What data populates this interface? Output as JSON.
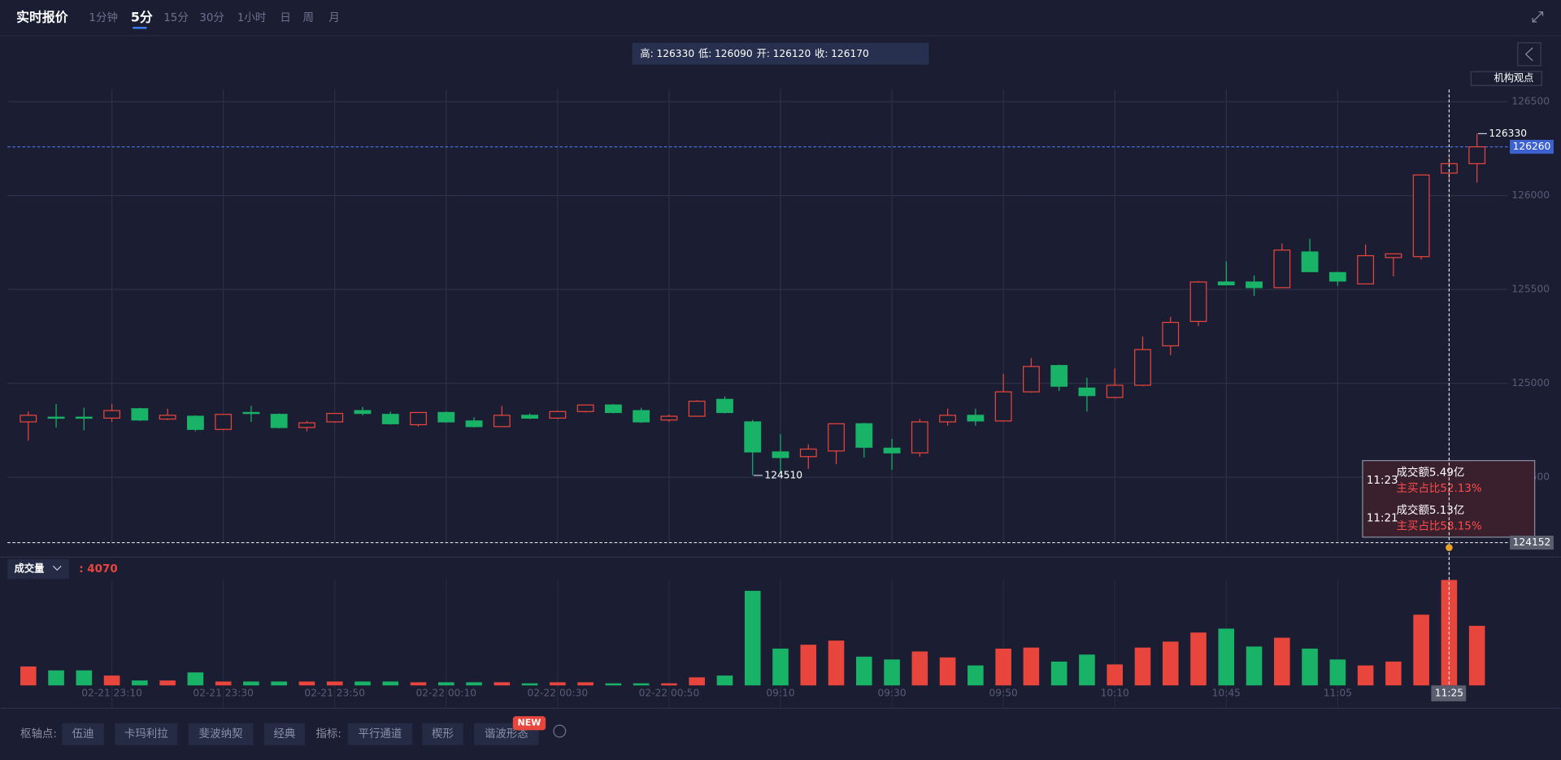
{
  "header": {
    "title": "实时报价",
    "tabs": [
      "1分钟",
      "5分",
      "15分",
      "30分",
      "1小时",
      "日",
      "周",
      "月"
    ],
    "active_tab": 1
  },
  "info": [
    {
      "label": "高:",
      "value": 126330
    },
    {
      "label": "低:",
      "value": 126090
    },
    {
      "label": "开:",
      "value": 126120
    },
    {
      "label": "收:",
      "value": 126170
    }
  ],
  "side_button": "机构观点",
  "chart_data": {
    "type": "candlestick",
    "categories": [
      null,
      null,
      null,
      "02-21 23:10",
      null,
      null,
      null,
      "02-21 23:30",
      null,
      null,
      null,
      "02-21 23:50",
      null,
      null,
      null,
      "02-22 00:10",
      null,
      null,
      null,
      "02-22 00:30",
      null,
      null,
      null,
      "02-22 00:50",
      null,
      null,
      null,
      "09:10",
      null,
      null,
      null,
      "09:30",
      null,
      null,
      null,
      "09:50",
      null,
      null,
      null,
      "10:10",
      null,
      null,
      null,
      "10:45",
      null,
      null,
      null,
      "11:05",
      null,
      null,
      null,
      null,
      null
    ],
    "open": [
      124795,
      124820,
      124820,
      124815,
      124865,
      124810,
      124825,
      124755,
      124845,
      124835,
      124765,
      124795,
      124855,
      124835,
      124780,
      124845,
      124800,
      124770,
      124830,
      124815,
      124850,
      124885,
      124855,
      124805,
      124825,
      124915,
      124795,
      124635,
      124610,
      124640,
      124785,
      124655,
      124630,
      124795,
      124830,
      124800,
      124955,
      125095,
      124975,
      124925,
      124990,
      125200,
      125330,
      125540,
      125540,
      125510,
      125700,
      125590,
      125530,
      125670,
      125675,
      126120,
      126170
    ],
    "high": [
      124850,
      124890,
      124870,
      124890,
      124870,
      124865,
      124830,
      124835,
      124880,
      124840,
      124800,
      124840,
      124875,
      124850,
      124845,
      124850,
      124820,
      124880,
      124840,
      124855,
      124885,
      124890,
      124870,
      124835,
      124910,
      124930,
      124805,
      124730,
      124675,
      124785,
      124790,
      124705,
      124810,
      124865,
      124865,
      125050,
      125135,
      125100,
      125030,
      125080,
      125250,
      125355,
      125545,
      125650,
      125575,
      125745,
      125770,
      125595,
      125740,
      125690,
      126110,
      126200,
      126330
    ],
    "low": [
      124695,
      124765,
      124750,
      124795,
      124800,
      124805,
      124745,
      124750,
      124795,
      124760,
      124745,
      124790,
      124830,
      124780,
      124770,
      124790,
      124765,
      124770,
      124810,
      124810,
      124845,
      124840,
      124790,
      124795,
      124825,
      124840,
      124510,
      124520,
      124545,
      124570,
      124605,
      124540,
      124610,
      124775,
      124775,
      124800,
      124950,
      124960,
      124850,
      124920,
      124985,
      125150,
      125305,
      125525,
      125465,
      125510,
      125595,
      125520,
      125530,
      125570,
      125660,
      126090,
      126070
    ],
    "close": [
      124830,
      124815,
      124815,
      124855,
      124805,
      124830,
      124755,
      124835,
      124840,
      124765,
      124790,
      124840,
      124840,
      124785,
      124845,
      124795,
      124770,
      124830,
      124815,
      124850,
      124885,
      124845,
      124795,
      124825,
      124905,
      124845,
      124635,
      124605,
      124650,
      124785,
      124660,
      124630,
      124795,
      124830,
      124800,
      124955,
      125090,
      124985,
      124935,
      124990,
      125180,
      125325,
      125540,
      125525,
      125510,
      125710,
      125595,
      125545,
      125680,
      125690,
      126110,
      126170,
      126260
    ],
    "volume": [
      730,
      580,
      580,
      380,
      190,
      190,
      500,
      150,
      150,
      150,
      150,
      150,
      150,
      150,
      120,
      120,
      120,
      120,
      80,
      120,
      120,
      80,
      80,
      80,
      310,
      380,
      3650,
      1420,
      1570,
      1730,
      1110,
      1000,
      1310,
      1080,
      770,
      1420,
      1460,
      920,
      1190,
      810,
      1460,
      1690,
      2040,
      2190,
      1500,
      1840,
      1420,
      1000,
      770,
      920,
      2730,
      4070,
      2300
    ],
    "up_color": "#e8453c",
    "down_color": "#19b368",
    "ylim": [
      124075,
      126565
    ],
    "yticks": [
      124500,
      125000,
      125500,
      126000,
      126500
    ],
    "grid": true,
    "last_price": 126260,
    "high_mark": 126330,
    "low_mark": 124510,
    "crosshair": {
      "price": 124152,
      "time": "11:25"
    },
    "volume_title": "成交量",
    "volume_readout": ": 4070",
    "tooltip": [
      {
        "time": "11:23",
        "amount": "成交额5.49亿",
        "ratio": "主买占比52.13%"
      },
      {
        "time": "11:21",
        "amount": "成交额5.13亿",
        "ratio": "主买占比58.15%"
      }
    ]
  },
  "toolbar": {
    "pivot_label": "枢轴点:",
    "pivots": [
      "伍迪",
      "卡玛利拉",
      "斐波纳契",
      "经典"
    ],
    "indicator_label": "指标:",
    "indicators": [
      "平行通道",
      "楔形",
      "谐波形态"
    ],
    "badge": "NEW"
  }
}
